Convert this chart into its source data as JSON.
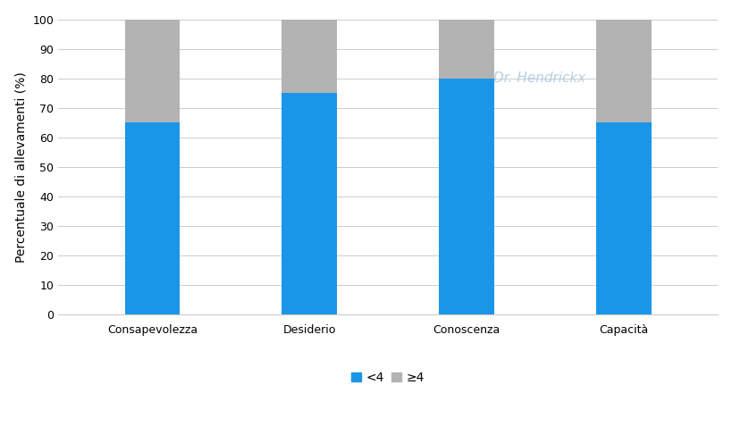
{
  "categories": [
    "Consapevolezza",
    "Desiderio",
    "Conoscenza",
    "Capacità"
  ],
  "values_lt4": [
    65,
    75,
    80,
    65
  ],
  "values_ge4": [
    35,
    25,
    20,
    35
  ],
  "color_lt4": "#1a96e8",
  "color_ge4": "#b3b3b3",
  "ylabel": "Percentuale di allevamenti (%)",
  "ylim": [
    0,
    100
  ],
  "yticks": [
    0,
    10,
    20,
    30,
    40,
    50,
    60,
    70,
    80,
    90,
    100
  ],
  "legend_lt4": "<4",
  "legend_ge4": "≥4",
  "watermark_text": "Dr. Hendrickx",
  "background_color": "#ffffff",
  "plot_bg_color": "#f5f5f5",
  "bar_width": 0.35,
  "axis_fontsize": 10,
  "tick_fontsize": 9,
  "legend_fontsize": 10
}
